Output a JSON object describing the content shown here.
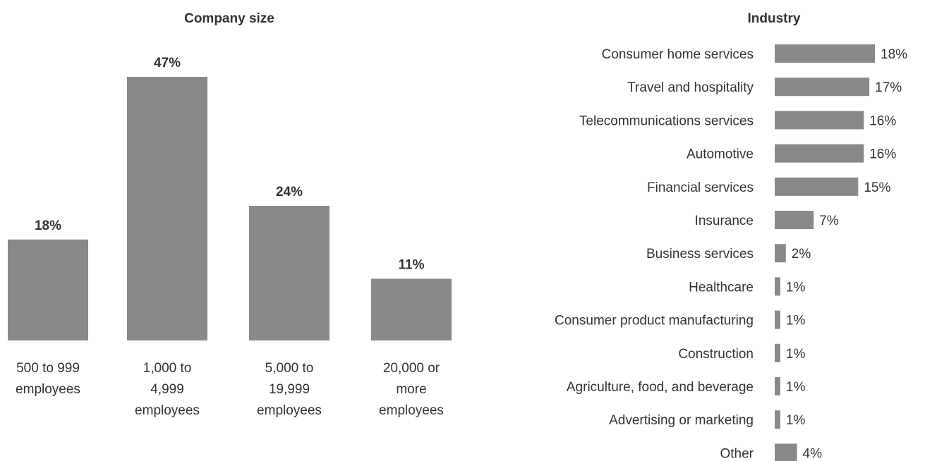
{
  "chart_data": [
    {
      "type": "bar",
      "orientation": "vertical",
      "title": "Company size",
      "categories": [
        [
          "500 to 999",
          "employees"
        ],
        [
          "1,000 to",
          "4,999",
          "employees"
        ],
        [
          "5,000 to",
          "19,999",
          "employees"
        ],
        [
          "20,000 or",
          "more",
          "employees"
        ]
      ],
      "values": [
        18,
        47,
        24,
        11
      ],
      "value_labels": [
        "18%",
        "47%",
        "24%",
        "11%"
      ],
      "unit": "%",
      "bar_color": "#898989",
      "grid": false
    },
    {
      "type": "bar",
      "orientation": "horizontal",
      "title": "Industry",
      "categories": [
        "Consumer home services",
        "Travel and hospitality",
        "Telecommunications services",
        "Automotive",
        "Financial services",
        "Insurance",
        "Business services",
        "Healthcare",
        "Consumer product manufacturing",
        "Construction",
        "Agriculture, food, and beverage",
        "Advertising or marketing",
        "Other"
      ],
      "values": [
        18,
        17,
        16,
        16,
        15,
        7,
        2,
        1,
        1,
        1,
        1,
        1,
        4
      ],
      "value_labels": [
        "18%",
        "17%",
        "16%",
        "16%",
        "15%",
        "7%",
        "2%",
        "1%",
        "1%",
        "1%",
        "1%",
        "1%",
        "4%"
      ],
      "unit": "%",
      "bar_color": "#898989",
      "grid": false
    }
  ]
}
